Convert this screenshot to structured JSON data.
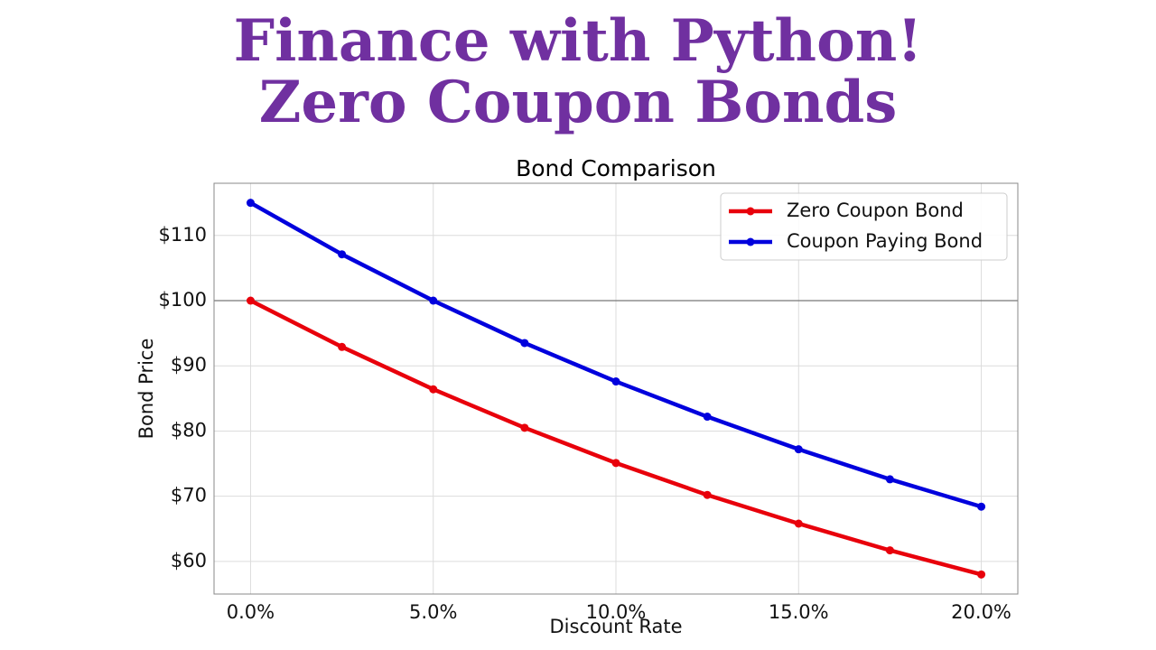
{
  "banner": {
    "line1": "Finance with Python!",
    "line2": "Zero Coupon Bonds",
    "color": "#7030a0"
  },
  "chart_data": {
    "type": "line",
    "title": "Bond Comparison",
    "xlabel": "Discount Rate",
    "ylabel": "Bond Price",
    "x": [
      0.0,
      2.5,
      5.0,
      7.5,
      10.0,
      12.5,
      15.0,
      17.5,
      20.0
    ],
    "xticks": [
      0,
      5,
      10,
      15,
      20
    ],
    "xtick_labels": [
      "0.0%",
      "5.0%",
      "10.0%",
      "15.0%",
      "20.0%"
    ],
    "yticks": [
      60,
      70,
      80,
      90,
      100,
      110
    ],
    "ytick_labels": [
      "$60",
      "$70",
      "$80",
      "$90",
      "$100",
      "$110"
    ],
    "xlim": [
      -1,
      21
    ],
    "ylim": [
      55,
      118
    ],
    "grid": true,
    "reference_line": 100,
    "legend_position": "top-right",
    "series": [
      {
        "name": "Zero Coupon Bond",
        "color": "#e8000b",
        "values": [
          100.0,
          92.9,
          86.4,
          80.5,
          75.1,
          70.2,
          65.8,
          61.7,
          58.0
        ]
      },
      {
        "name": "Coupon Paying Bond",
        "color": "#0000dd",
        "values": [
          115.0,
          107.1,
          100.0,
          93.5,
          87.6,
          82.2,
          77.2,
          72.6,
          68.4
        ]
      }
    ]
  }
}
